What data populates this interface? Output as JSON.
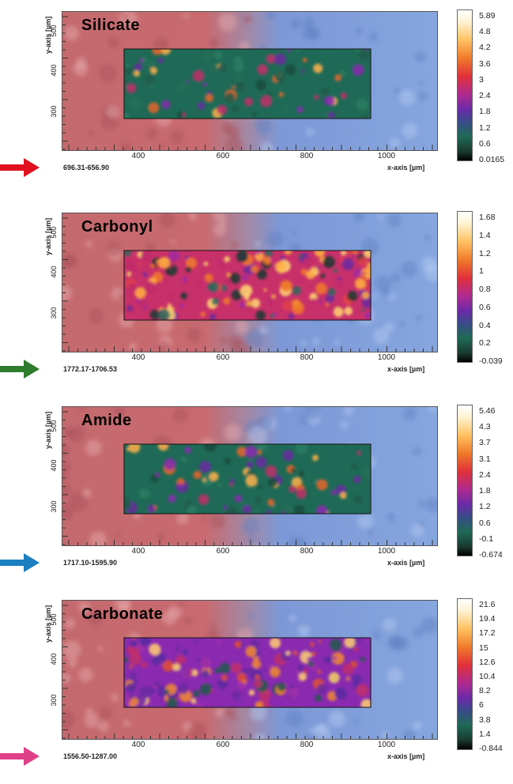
{
  "common": {
    "y_axis_label": "y-axis [µm]",
    "x_axis_label": "x-axis [µm]",
    "x_ticks": [
      "400",
      "600",
      "800",
      "1000"
    ],
    "y_ticks": [
      "500",
      "400",
      "300"
    ]
  },
  "panels": [
    {
      "title": "Silicate",
      "range": "696.31-656.90",
      "arrow_color": "#e0101e",
      "scale": [
        "5.89",
        "4.8",
        "4.2",
        "3.6",
        "3",
        "2.4",
        "1.8",
        "1.2",
        "0.6",
        "0.0165"
      ],
      "dominant": "low"
    },
    {
      "title": "Carbonyl",
      "range": "1772.17-1706.53",
      "arrow_color": "#2e7d2e",
      "scale": [
        "1.68",
        "1.4",
        "1.2",
        "1",
        "0.8",
        "0.6",
        "0.4",
        "0.2",
        "-0.039"
      ],
      "dominant": "high"
    },
    {
      "title": "Amide",
      "range": "1717.10-1595.90",
      "arrow_color": "#1a7fc0",
      "scale": [
        "5.46",
        "4.3",
        "3.7",
        "3.1",
        "2.4",
        "1.8",
        "1.2",
        "0.6",
        "-0.1",
        "-0.674"
      ],
      "dominant": "low"
    },
    {
      "title": "Carbonate",
      "range": "1556.50-1287.00",
      "arrow_color": "#e0408a",
      "scale": [
        "21.6",
        "19.4",
        "17.2",
        "15",
        "12.6",
        "10.4",
        "8.2",
        "6",
        "3.8",
        "1.4",
        "-0.844"
      ],
      "dominant": "mid"
    }
  ]
}
